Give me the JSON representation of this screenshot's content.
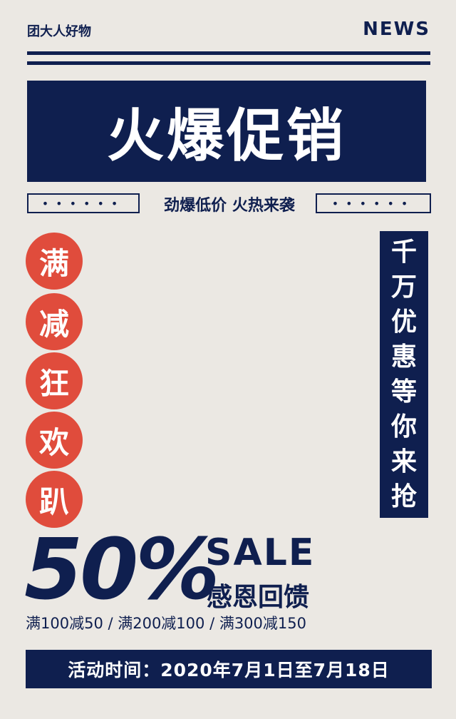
{
  "header": {
    "brand": "团大人好物",
    "news": "NEWS"
  },
  "title": "火爆促销",
  "subtitle": "劲爆低价 火热来袭",
  "dots": "••••••",
  "circles": [
    "满",
    "减",
    "狂",
    "欢",
    "趴"
  ],
  "vertical_banner": [
    "千",
    "万",
    "优",
    "惠",
    "等",
    "你",
    "来",
    "抢"
  ],
  "promo": {
    "percent": "50%",
    "sale": "SALE",
    "thanks": "感恩回馈",
    "tiers": "满100减50 / 满200减100 / 满300减150"
  },
  "event_time": "活动时间：2020年7月1日至7月18日",
  "colors": {
    "navy": "#0f1f4f",
    "red": "#e04c3c",
    "paper": "#ebe8e3"
  }
}
